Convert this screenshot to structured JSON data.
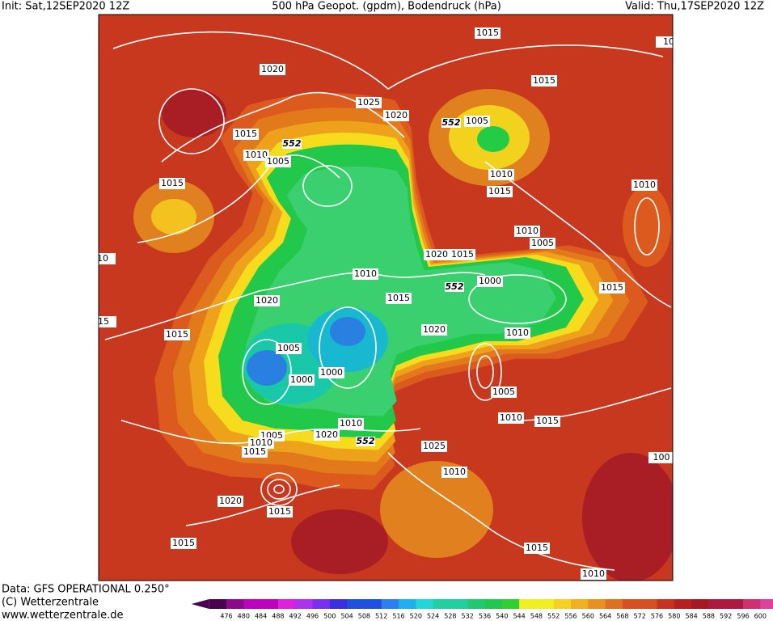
{
  "header": {
    "init": "Init: Sat,12SEP2020 12Z",
    "title": "500 hPa Geopot. (gpdm), Bodendruck (hPa)",
    "valid": "Valid: Thu,17SEP2020 12Z"
  },
  "footer": {
    "data": "Data: GFS OPERATIONAL 0.250°",
    "copyright": "(C) Wetterzentrale",
    "url": "www.wetterzentrale.de"
  },
  "isobar_labels": [
    "1015",
    "1020",
    "1025",
    "1020",
    "1015",
    "1010",
    "1005",
    "1005",
    "1015",
    "1010",
    "1015",
    "1015",
    "1010",
    "1010",
    "1005",
    "1020",
    "1015",
    "1010",
    "1000",
    "1015",
    "1020",
    "1015",
    "1015",
    "1020",
    "1010",
    "1005",
    "1000",
    "1000",
    "1005",
    "1010",
    "1015",
    "1010",
    "1020",
    "1005",
    "1010",
    "1015",
    "1025",
    "1010",
    "1020",
    "1015",
    "1015",
    "1015",
    "1010",
    "100",
    "10",
    "10",
    "15"
  ],
  "geopotential_labels": [
    "552",
    "552",
    "552",
    "552"
  ],
  "colorbar_labels": [
    "476",
    "480",
    "484",
    "488",
    "492",
    "496",
    "500",
    "504",
    "508",
    "512",
    "516",
    "520",
    "524",
    "528",
    "532",
    "536",
    "540",
    "544",
    "548",
    "552",
    "556",
    "560",
    "564",
    "568",
    "572",
    "576",
    "580",
    "584",
    "588",
    "592",
    "596",
    "600"
  ]
}
